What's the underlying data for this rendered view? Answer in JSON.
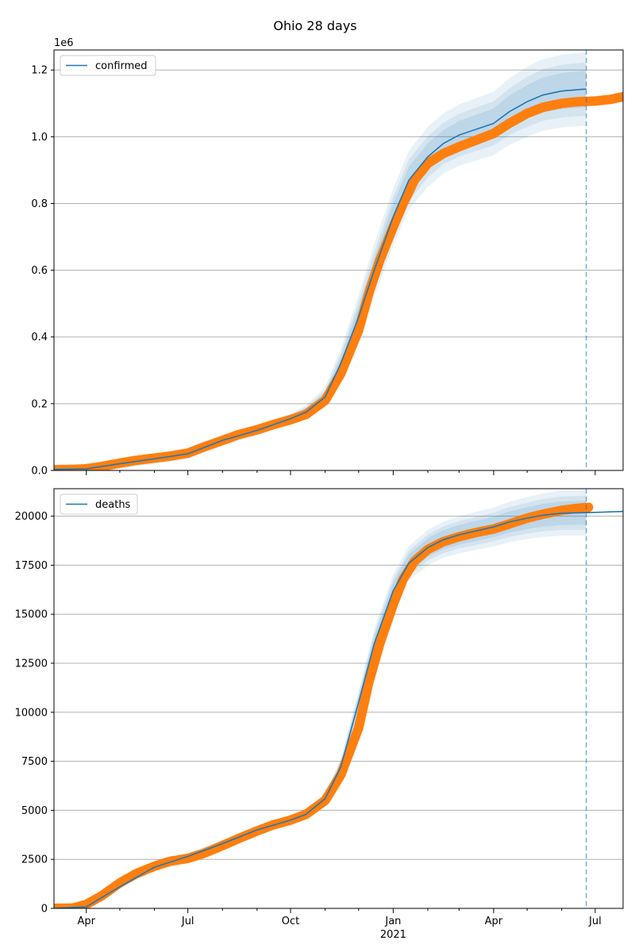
{
  "figure_title": "Ohio 28 days",
  "colors": {
    "model_line": "#1f77b4",
    "band": "#1f77b4",
    "observed": "#ff7f0e",
    "forecast_marker": "#1f77b4",
    "grid": "#b0b0b0",
    "axis": "#000000"
  },
  "x_axis": {
    "tick_labels": [
      "Apr",
      "Jul",
      "Oct",
      "Jan",
      "Apr",
      "Jul"
    ],
    "year_label": "2021",
    "tick_dates": [
      "2020-04-01",
      "2020-07-01",
      "2020-10-01",
      "2021-01-01",
      "2021-04-01",
      "2021-07-01"
    ],
    "range": [
      "2020-03-03",
      "2021-07-26"
    ]
  },
  "chart_data": [
    {
      "type": "line",
      "legend": "confirmed",
      "legend_position": "top-left",
      "grid": "horizontal",
      "offset_text": "1e6",
      "ylim": [
        0,
        1.26
      ],
      "yticks": [
        0.0,
        0.2,
        0.4,
        0.6,
        0.8,
        1.0,
        1.2
      ],
      "ytick_labels": [
        "0.0",
        "0.2",
        "0.4",
        "0.6",
        "0.8",
        "1.0",
        "1.2"
      ],
      "forecast_date": "2021-06-23",
      "series": [
        {
          "name": "confirmed",
          "kind": "model",
          "x": [
            "2020-03-03",
            "2020-04-01",
            "2020-05-01",
            "2020-06-01",
            "2020-07-01",
            "2020-08-01",
            "2020-09-01",
            "2020-10-01",
            "2020-10-15",
            "2020-11-01",
            "2020-11-15",
            "2020-12-01",
            "2020-12-15",
            "2021-01-01",
            "2021-01-15",
            "2021-02-01",
            "2021-02-15",
            "2021-03-01",
            "2021-04-01",
            "2021-04-15",
            "2021-05-01",
            "2021-05-15",
            "2021-06-01",
            "2021-06-23"
          ],
          "values": [
            0.003,
            0.005,
            0.02,
            0.035,
            0.05,
            0.09,
            0.12,
            0.155,
            0.175,
            0.22,
            0.32,
            0.46,
            0.6,
            0.76,
            0.87,
            0.94,
            0.98,
            1.005,
            1.04,
            1.075,
            1.105,
            1.125,
            1.137,
            1.143
          ],
          "band_inner": [
            0.01,
            0.01,
            0.01,
            0.01,
            0.01,
            0.01,
            0.01,
            0.01,
            0.012,
            0.015,
            0.02,
            0.03,
            0.035,
            0.04,
            0.04,
            0.04,
            0.04,
            0.042,
            0.045,
            0.048,
            0.05,
            0.052,
            0.054,
            0.055
          ],
          "band_mid": [
            0.012,
            0.012,
            0.012,
            0.012,
            0.012,
            0.012,
            0.012,
            0.013,
            0.015,
            0.02,
            0.03,
            0.045,
            0.055,
            0.06,
            0.062,
            0.062,
            0.062,
            0.064,
            0.066,
            0.07,
            0.075,
            0.077,
            0.079,
            0.08
          ],
          "band_outer": [
            0.015,
            0.015,
            0.015,
            0.015,
            0.015,
            0.015,
            0.015,
            0.016,
            0.02,
            0.03,
            0.045,
            0.065,
            0.08,
            0.085,
            0.088,
            0.09,
            0.09,
            0.092,
            0.095,
            0.1,
            0.105,
            0.107,
            0.109,
            0.11
          ]
        },
        {
          "name": "observed",
          "kind": "observed",
          "x": [
            "2020-03-03",
            "2020-03-20",
            "2020-04-01",
            "2020-04-15",
            "2020-05-01",
            "2020-05-15",
            "2020-06-01",
            "2020-06-15",
            "2020-07-01",
            "2020-07-15",
            "2020-08-01",
            "2020-08-15",
            "2020-09-01",
            "2020-09-15",
            "2020-10-01",
            "2020-10-15",
            "2020-11-01",
            "2020-11-15",
            "2020-12-01",
            "2020-12-10",
            "2020-12-20",
            "2021-01-01",
            "2021-01-10",
            "2021-01-20",
            "2021-02-01",
            "2021-02-15",
            "2021-03-01",
            "2021-03-15",
            "2021-04-01",
            "2021-04-15",
            "2021-05-01",
            "2021-05-15",
            "2021-06-01",
            "2021-06-15",
            "2021-07-01",
            "2021-07-15",
            "2021-07-26"
          ],
          "values": [
            0.002,
            0.003,
            0.005,
            0.012,
            0.022,
            0.03,
            0.037,
            0.043,
            0.052,
            0.07,
            0.09,
            0.107,
            0.122,
            0.137,
            0.152,
            0.168,
            0.21,
            0.29,
            0.42,
            0.53,
            0.63,
            0.73,
            0.8,
            0.87,
            0.92,
            0.95,
            0.97,
            0.988,
            1.01,
            1.04,
            1.07,
            1.088,
            1.1,
            1.105,
            1.107,
            1.112,
            1.12
          ]
        }
      ]
    },
    {
      "type": "line",
      "legend": "deaths",
      "legend_position": "top-left",
      "grid": "horizontal",
      "ylim": [
        0,
        21400
      ],
      "yticks": [
        0,
        2500,
        5000,
        7500,
        10000,
        12500,
        15000,
        17500,
        20000
      ],
      "ytick_labels": [
        "0",
        "2500",
        "5000",
        "7500",
        "10000",
        "12500",
        "15000",
        "17500",
        "20000"
      ],
      "forecast_date": "2021-06-23",
      "series": [
        {
          "name": "deaths",
          "kind": "model",
          "x": [
            "2020-03-03",
            "2020-04-01",
            "2020-05-01",
            "2020-06-01",
            "2020-07-01",
            "2020-08-01",
            "2020-09-01",
            "2020-10-01",
            "2020-10-15",
            "2020-11-01",
            "2020-11-15",
            "2020-12-01",
            "2020-12-15",
            "2021-01-01",
            "2021-01-15",
            "2021-02-01",
            "2021-02-15",
            "2021-03-01",
            "2021-04-01",
            "2021-04-15",
            "2021-05-01",
            "2021-05-15",
            "2021-06-01",
            "2021-06-23",
            "2021-07-26"
          ],
          "values": [
            0,
            80,
            1100,
            2100,
            2650,
            3300,
            4000,
            4500,
            4800,
            5600,
            7200,
            10500,
            13500,
            16200,
            17600,
            18400,
            18800,
            19050,
            19450,
            19700,
            19900,
            20050,
            20150,
            20180,
            20240
          ],
          "band_inner": [
            20,
            30,
            50,
            60,
            70,
            80,
            100,
            120,
            130,
            160,
            220,
            300,
            380,
            420,
            450,
            470,
            490,
            500,
            520,
            540,
            560,
            580,
            600,
            610,
            0
          ],
          "band_mid": [
            30,
            40,
            70,
            90,
            110,
            130,
            150,
            170,
            180,
            220,
            300,
            420,
            540,
            600,
            640,
            660,
            680,
            700,
            730,
            760,
            790,
            820,
            850,
            870,
            0
          ],
          "band_outer": [
            40,
            60,
            100,
            130,
            160,
            190,
            220,
            250,
            260,
            300,
            420,
            600,
            760,
            840,
            880,
            900,
            920,
            950,
            990,
            1030,
            1070,
            1110,
            1150,
            1180,
            0
          ]
        },
        {
          "name": "observed",
          "kind": "observed",
          "x": [
            "2020-03-03",
            "2020-03-20",
            "2020-04-01",
            "2020-04-15",
            "2020-05-01",
            "2020-05-15",
            "2020-06-01",
            "2020-06-15",
            "2020-07-01",
            "2020-07-15",
            "2020-08-01",
            "2020-08-15",
            "2020-09-01",
            "2020-09-15",
            "2020-10-01",
            "2020-10-15",
            "2020-11-01",
            "2020-11-15",
            "2020-12-01",
            "2020-12-10",
            "2020-12-20",
            "2021-01-01",
            "2021-01-10",
            "2021-01-20",
            "2021-02-01",
            "2021-02-15",
            "2021-03-01",
            "2021-03-15",
            "2021-04-01",
            "2021-04-15",
            "2021-05-01",
            "2021-05-15",
            "2021-06-01",
            "2021-06-15",
            "2021-06-25"
          ],
          "values": [
            0,
            20,
            200,
            650,
            1300,
            1750,
            2150,
            2400,
            2550,
            2800,
            3200,
            3550,
            3950,
            4250,
            4500,
            4800,
            5500,
            6800,
            9200,
            11500,
            13500,
            15500,
            16800,
            17700,
            18300,
            18700,
            18950,
            19150,
            19350,
            19600,
            19900,
            20100,
            20300,
            20400,
            20450
          ]
        }
      ]
    }
  ]
}
